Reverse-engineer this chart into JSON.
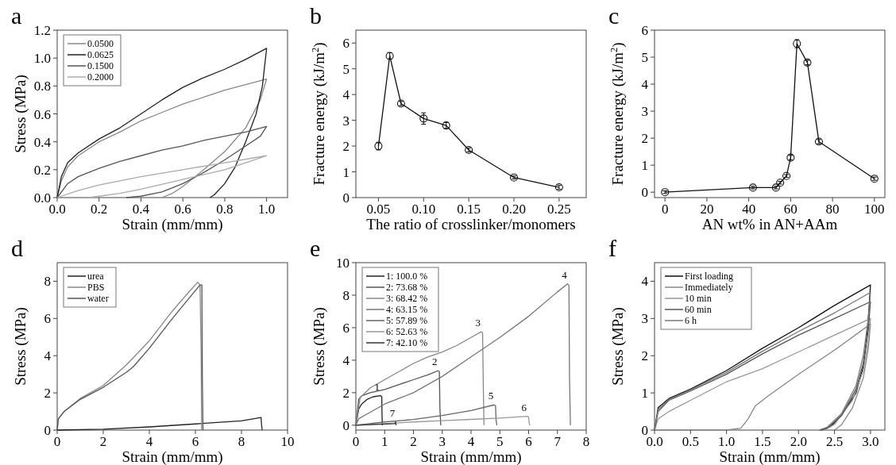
{
  "chart_data": [
    {
      "type": "line",
      "title": "a",
      "xlabel": "Strain (mm/mm)",
      "ylabel": "Stress (MPa)",
      "xlim": [
        0,
        1.1
      ],
      "ylim": [
        0,
        1.2
      ],
      "xticks": [
        {
          "value": 0,
          "label": "0.0"
        },
        {
          "value": 0.2,
          "label": "0.2"
        },
        {
          "value": 0.4,
          "label": "0.4"
        },
        {
          "value": 0.6,
          "label": "0.6"
        },
        {
          "value": 0.8,
          "label": "0.8"
        },
        {
          "value": 1,
          "label": "1.0"
        }
      ],
      "yticks": [
        {
          "value": 0,
          "label": "0.0"
        },
        {
          "value": 0.2,
          "label": "0.2"
        },
        {
          "value": 0.4,
          "label": "0.4"
        },
        {
          "value": 0.6,
          "label": "0.6"
        },
        {
          "value": 0.8,
          "label": "0.8"
        },
        {
          "value": 1,
          "label": "1.0"
        },
        {
          "value": 1.2,
          "label": "1.2"
        }
      ],
      "legend": "top left",
      "marker": "none",
      "line_style": "solid",
      "series": [
        {
          "name": "0.0500",
          "color": "#888888",
          "x": [
            0,
            0.02,
            0.05,
            0.1,
            0.2,
            0.3,
            0.4,
            0.5,
            0.6,
            0.7,
            0.8,
            0.9,
            1.0,
            0.97,
            0.9,
            0.8,
            0.7,
            0.6,
            0.55,
            0.5
          ],
          "values": [
            0,
            0.12,
            0.22,
            0.3,
            0.4,
            0.47,
            0.55,
            0.61,
            0.67,
            0.72,
            0.77,
            0.81,
            0.85,
            0.7,
            0.5,
            0.33,
            0.2,
            0.08,
            0.03,
            0
          ]
        },
        {
          "name": "0.0625",
          "color": "#222222",
          "x": [
            0,
            0.02,
            0.05,
            0.1,
            0.2,
            0.3,
            0.4,
            0.5,
            0.6,
            0.7,
            0.8,
            0.9,
            1.0,
            0.98,
            0.95,
            0.9,
            0.85,
            0.8,
            0.75,
            0.73
          ],
          "values": [
            0,
            0.15,
            0.25,
            0.32,
            0.42,
            0.5,
            0.6,
            0.7,
            0.79,
            0.86,
            0.92,
            0.99,
            1.07,
            0.8,
            0.6,
            0.4,
            0.22,
            0.1,
            0.02,
            0
          ]
        },
        {
          "name": "0.1500",
          "color": "#555555",
          "x": [
            0,
            0.05,
            0.1,
            0.2,
            0.3,
            0.4,
            0.5,
            0.6,
            0.7,
            0.8,
            0.9,
            1.0,
            0.97,
            0.9,
            0.8,
            0.7,
            0.6,
            0.5,
            0.4,
            0.33
          ],
          "values": [
            0,
            0.1,
            0.15,
            0.21,
            0.26,
            0.3,
            0.34,
            0.37,
            0.41,
            0.44,
            0.47,
            0.51,
            0.44,
            0.37,
            0.27,
            0.18,
            0.1,
            0.04,
            0.01,
            0
          ]
        },
        {
          "name": "0.2000",
          "color": "#aaaaaa",
          "x": [
            0,
            0.1,
            0.2,
            0.4,
            0.6,
            0.8,
            1.0,
            0.9,
            0.8,
            0.6,
            0.4,
            0.3,
            0.2,
            0.15
          ],
          "values": [
            0,
            0.05,
            0.09,
            0.15,
            0.2,
            0.25,
            0.3,
            0.25,
            0.2,
            0.13,
            0.06,
            0.03,
            0.01,
            0
          ]
        }
      ]
    },
    {
      "type": "line",
      "title": "b",
      "xlabel": "The ratio of crosslinker/monomers",
      "ylabel": "Fracture energy (kJ/m$^{2}$)",
      "xlim": [
        0.025,
        0.28
      ],
      "ylim": [
        0,
        6.5
      ],
      "xticks": [
        {
          "value": 0.05,
          "label": "0.05"
        },
        {
          "value": 0.1,
          "label": "0.10"
        },
        {
          "value": 0.15,
          "label": "0.15"
        },
        {
          "value": 0.2,
          "label": "0.20"
        },
        {
          "value": 0.25,
          "label": "0.25"
        }
      ],
      "yticks": [
        0,
        1,
        2,
        3,
        4,
        5,
        6
      ],
      "marker": "circle",
      "line_style": "solid",
      "x": [
        0.05,
        0.0625,
        0.075,
        0.1,
        0.125,
        0.15,
        0.2,
        0.25
      ],
      "series": [
        {
          "color": "#111111",
          "values": [
            2.0,
            5.5,
            3.65,
            3.07,
            2.8,
            1.85,
            0.78,
            0.4
          ],
          "errors": [
            0.15,
            0.12,
            0.08,
            0.22,
            0.12,
            0.08,
            0.06,
            0.08
          ]
        }
      ]
    },
    {
      "type": "line",
      "title": "c",
      "xlabel": "AN wt% in AN+AAm",
      "ylabel": "Fracture energy (kJ/m$^{2}$)",
      "xlim": [
        -5,
        105
      ],
      "ylim": [
        -0.2,
        6
      ],
      "xticks": [
        0,
        20,
        40,
        60,
        80,
        100
      ],
      "yticks": [
        0,
        1,
        2,
        3,
        4,
        5,
        6
      ],
      "marker": "circle",
      "line_style": "solid",
      "x": [
        0,
        42,
        53,
        55,
        58,
        60,
        63,
        68,
        73.5,
        100
      ],
      "series": [
        {
          "color": "#111111",
          "values": [
            0,
            0.17,
            0.17,
            0.35,
            0.6,
            1.28,
            5.5,
            4.8,
            1.87,
            0.5
          ],
          "errors": [
            0.05,
            0.05,
            0.05,
            0.05,
            0.05,
            0.08,
            0.15,
            0.08,
            0.08,
            0.06
          ]
        }
      ]
    },
    {
      "type": "line",
      "title": "d",
      "xlabel": "Strain (mm/mm)",
      "ylabel": "Stress (MPa)",
      "xlim": [
        0,
        10
      ],
      "ylim": [
        0,
        9
      ],
      "xticks": [
        0,
        2,
        4,
        6,
        8,
        10
      ],
      "yticks": [
        0,
        2,
        4,
        6,
        8
      ],
      "legend": "top left",
      "marker": "none",
      "line_style": "solid",
      "series": [
        {
          "name": "urea",
          "color": "#222222",
          "x": [
            0,
            2,
            4,
            6,
            8,
            8.85,
            8.87,
            8.9
          ],
          "values": [
            0,
            0.05,
            0.17,
            0.33,
            0.5,
            0.68,
            0.3,
            0
          ]
        },
        {
          "name": "PBS",
          "color": "#888888",
          "x": [
            0,
            0.05,
            0.3,
            1,
            2,
            3,
            4,
            5,
            5.7,
            6.1,
            6.2,
            6.25,
            6.27
          ],
          "values": [
            0,
            0.6,
            1.0,
            1.7,
            2.4,
            3.5,
            4.8,
            6.4,
            7.4,
            7.95,
            7.8,
            4,
            0
          ]
        },
        {
          "name": "water",
          "color": "#555555",
          "x": [
            0,
            0.05,
            0.3,
            1,
            2,
            3,
            3.3,
            4,
            5,
            6,
            6.2,
            6.28,
            6.3,
            6.33
          ],
          "values": [
            0,
            0.6,
            1.0,
            1.65,
            2.3,
            3.1,
            3.4,
            4.4,
            6.0,
            7.5,
            7.8,
            7.8,
            3,
            0
          ]
        }
      ]
    },
    {
      "type": "line",
      "title": "e",
      "xlabel": "Strain (mm/mm)",
      "ylabel": "Stress (MPa)",
      "xlim": [
        0,
        8
      ],
      "ylim": [
        -0.3,
        10
      ],
      "xticks": [
        0,
        1,
        2,
        3,
        4,
        5,
        6,
        7,
        8
      ],
      "yticks": [
        0,
        2,
        4,
        6,
        8,
        10
      ],
      "legend": "top left",
      "marker": "none",
      "line_style": "solid",
      "annotations": [
        {
          "text": "1",
          "x": 0.85,
          "y": 1.82
        },
        {
          "text": "2",
          "x": 2.85,
          "y": 3.35
        },
        {
          "text": "3",
          "x": 4.35,
          "y": 5.75
        },
        {
          "text": "4",
          "x": 7.35,
          "y": 8.7
        },
        {
          "text": "5",
          "x": 4.8,
          "y": 1.25
        },
        {
          "text": "6",
          "x": 5.95,
          "y": 0.55
        },
        {
          "text": "7",
          "x": 1.38,
          "y": 0.2
        }
      ],
      "series": [
        {
          "name": "1: 100.0 %",
          "color": "#222222",
          "x": [
            0,
            0.1,
            0.2,
            0.4,
            0.6,
            0.85,
            0.9,
            0.91,
            0.92
          ],
          "values": [
            0,
            1.0,
            1.3,
            1.6,
            1.75,
            1.82,
            1.75,
            0.5,
            0
          ]
        },
        {
          "name": "2: 73.68 %",
          "color": "#555555",
          "x": [
            0,
            0.1,
            0.2,
            0.5,
            1,
            1.5,
            2,
            2.5,
            2.85,
            2.9,
            2.92,
            2.95
          ],
          "values": [
            0,
            1.6,
            1.8,
            2.0,
            2.2,
            2.5,
            2.8,
            3.1,
            3.35,
            3.3,
            1,
            0
          ]
        },
        {
          "name": "3: 68.42 %",
          "color": "#888888",
          "x": [
            0,
            0.15,
            0.5,
            1,
            1.5,
            2,
            2.5,
            3,
            3.5,
            4,
            4.35,
            4.4,
            4.43,
            4.45
          ],
          "values": [
            0,
            1.7,
            2.3,
            2.8,
            3.3,
            3.8,
            4.2,
            4.5,
            4.9,
            5.4,
            5.75,
            5.7,
            2,
            0
          ]
        },
        {
          "name": "4: 63.15 %",
          "color": "#777777",
          "x": [
            0,
            0.1,
            0.5,
            1,
            2,
            3,
            4,
            5,
            6,
            7,
            7.35,
            7.4,
            7.42,
            7.45
          ],
          "values": [
            0,
            0.4,
            0.8,
            1.3,
            2.0,
            3.0,
            4.2,
            5.4,
            6.7,
            8.2,
            8.7,
            8.6,
            3,
            0
          ]
        },
        {
          "name": "5: 57.89 %",
          "color": "#666666",
          "x": [
            0,
            1,
            2,
            3,
            4,
            4.8,
            4.85,
            4.87,
            4.9
          ],
          "values": [
            0,
            0.2,
            0.35,
            0.6,
            0.9,
            1.25,
            1.2,
            0.3,
            0
          ]
        },
        {
          "name": "6: 52.63 %",
          "color": "#999999",
          "x": [
            0,
            1,
            2,
            3,
            4,
            5,
            5.95,
            6.0,
            6.02,
            6.05
          ],
          "values": [
            0,
            0.1,
            0.2,
            0.28,
            0.36,
            0.44,
            0.55,
            0.5,
            0.1,
            0
          ]
        },
        {
          "name": "7: 42.10 %",
          "color": "#333333",
          "x": [
            0,
            0.7,
            1.35,
            1.38,
            1.4
          ],
          "values": [
            0,
            0.05,
            0.1,
            0.2,
            0
          ]
        }
      ]
    },
    {
      "type": "line",
      "title": "f",
      "xlabel": "Strain (mm/mm)",
      "ylabel": "Stress (MPa)",
      "xlim": [
        0,
        3.2
      ],
      "ylim": [
        0,
        4.5
      ],
      "xticks": [
        {
          "value": 0,
          "label": "0.0"
        },
        {
          "value": 0.5,
          "label": "0.5"
        },
        {
          "value": 1,
          "label": "1.0"
        },
        {
          "value": 1.5,
          "label": "1.5"
        },
        {
          "value": 2,
          "label": "2.0"
        },
        {
          "value": 2.5,
          "label": "2.5"
        },
        {
          "value": 3,
          "label": "3.0"
        }
      ],
      "yticks": [
        0,
        1,
        2,
        3,
        4
      ],
      "legend": "top left",
      "marker": "none",
      "line_style": "solid",
      "series": [
        {
          "name": "First loading",
          "color": "#111111",
          "x": [
            0,
            0.05,
            0.2,
            0.5,
            1,
            1.5,
            2,
            2.5,
            3,
            2.98,
            2.95,
            2.9,
            2.8,
            2.6,
            2.45,
            2.32
          ],
          "values": [
            0,
            0.6,
            0.85,
            1.1,
            1.6,
            2.2,
            2.75,
            3.35,
            3.9,
            3.3,
            2.5,
            1.7,
            1.0,
            0.4,
            0.1,
            0
          ]
        },
        {
          "name": "Immediately",
          "color": "#888888",
          "x": [
            0,
            1.0,
            1.2,
            1.3,
            1.4,
            1.6,
            2,
            2.5,
            3,
            2.97,
            2.9,
            2.75,
            2.6,
            2.5
          ],
          "values": [
            0,
            0,
            0.05,
            0.3,
            0.65,
            0.95,
            1.5,
            2.15,
            2.85,
            2.2,
            1.4,
            0.6,
            0.15,
            0
          ]
        },
        {
          "name": "10 min",
          "color": "#999999",
          "x": [
            0,
            0.05,
            0.2,
            0.5,
            1,
            1.5,
            2,
            2.5,
            3,
            2.97,
            2.9,
            2.75,
            2.5,
            2.35
          ],
          "values": [
            0,
            0.3,
            0.5,
            0.8,
            1.3,
            1.65,
            2.1,
            2.55,
            3.0,
            2.4,
            1.6,
            0.8,
            0.15,
            0
          ]
        },
        {
          "name": "60 min",
          "color": "#555555",
          "x": [
            0,
            0.05,
            0.2,
            0.5,
            1,
            1.5,
            2,
            2.5,
            3,
            2.97,
            2.9,
            2.8,
            2.6,
            2.4,
            2.3
          ],
          "values": [
            0,
            0.5,
            0.8,
            1.05,
            1.5,
            2.05,
            2.55,
            3.0,
            3.45,
            2.7,
            1.8,
            1.1,
            0.4,
            0.05,
            0
          ]
        },
        {
          "name": "6 h",
          "color": "#777777",
          "x": [
            0,
            0.05,
            0.2,
            0.5,
            1,
            1.5,
            2,
            2.5,
            3,
            2.97,
            2.9,
            2.8,
            2.6,
            2.4,
            2.28
          ],
          "values": [
            0,
            0.55,
            0.82,
            1.08,
            1.55,
            2.12,
            2.65,
            3.15,
            3.7,
            3.0,
            2.0,
            1.2,
            0.45,
            0.08,
            0
          ]
        }
      ]
    }
  ]
}
